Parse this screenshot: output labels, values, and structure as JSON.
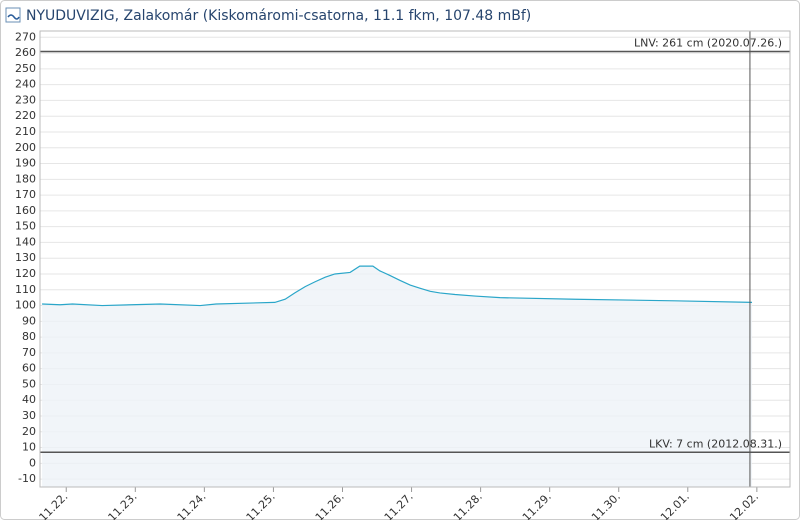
{
  "chart_data": {
    "type": "line",
    "title": "NYUDUVIZIG, Zalakomár (Kiskomáromi-csatorna, 11.1 fkm, 107.48 mBf)",
    "x": [
      -0.35,
      -0.09,
      0.09,
      0.52,
      1.36,
      1.94,
      2.17,
      3.02,
      3.17,
      3.31,
      3.46,
      3.6,
      3.75,
      3.89,
      4.11,
      4.25,
      4.44,
      4.54,
      4.69,
      4.83,
      4.98,
      5.12,
      5.27,
      5.41,
      5.63,
      5.92,
      6.28,
      7.37,
      8.81,
      9.93
    ],
    "series": [
      {
        "color": "#2aa6c9",
        "values": [
          101,
          100.5,
          101,
          100,
          101,
          100,
          101,
          102,
          104,
          108,
          112,
          115,
          118,
          120,
          121,
          125,
          125,
          122,
          119,
          116,
          113,
          111,
          109,
          108,
          107,
          106,
          105,
          104,
          103,
          102
        ]
      }
    ],
    "xlim": [
      -0.38,
      10.48
    ],
    "xticks": [
      {
        "value": 0,
        "label": "11.22."
      },
      {
        "value": 1,
        "label": "11.23."
      },
      {
        "value": 2,
        "label": "11.24."
      },
      {
        "value": 3,
        "label": "11.25."
      },
      {
        "value": 4,
        "label": "11.26."
      },
      {
        "value": 5,
        "label": "11.27."
      },
      {
        "value": 6,
        "label": "11.28."
      },
      {
        "value": 7,
        "label": "11.29."
      },
      {
        "value": 8,
        "label": "11.30."
      },
      {
        "value": 9,
        "label": "12.01."
      },
      {
        "value": 10,
        "label": "12.02."
      }
    ],
    "ylim": [
      -15,
      274
    ],
    "yticks": [
      -10,
      0,
      10,
      20,
      30,
      40,
      50,
      60,
      70,
      80,
      90,
      100,
      110,
      120,
      130,
      140,
      150,
      160,
      170,
      180,
      190,
      200,
      210,
      220,
      230,
      240,
      250,
      260,
      270
    ],
    "grid": true,
    "reference_lines": [
      {
        "value": 261,
        "label": "LNV: 261 cm (2020.07.26.)"
      },
      {
        "value": 7,
        "label": "LKV: 7 cm (2012.08.31.)"
      }
    ],
    "cursor_x": 9.9
  }
}
